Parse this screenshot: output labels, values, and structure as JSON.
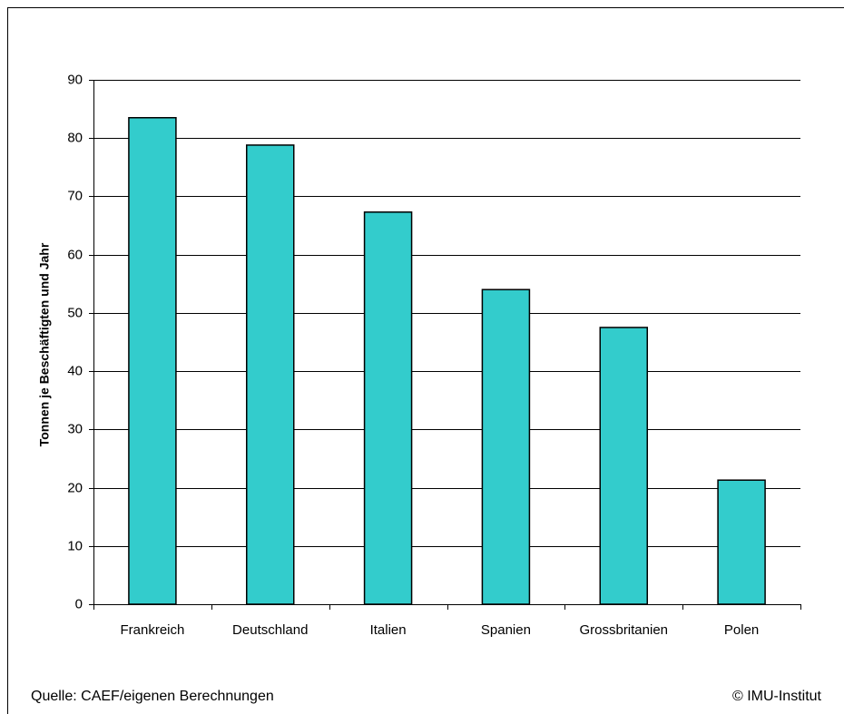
{
  "chart_data": {
    "type": "bar",
    "y_label": "Tonnen je Beschäftigten und Jahr",
    "categories": [
      "Frankreich",
      "Deutschland",
      "Italien",
      "Spanien",
      "Grossbritanien",
      "Polen"
    ],
    "values": [
      83.5,
      78.8,
      67.3,
      54.0,
      47.5,
      21.3
    ],
    "color": "#33cccc",
    "ylim": [
      0,
      90
    ],
    "yticks": [
      0,
      10,
      20,
      30,
      40,
      50,
      60,
      70,
      80,
      90
    ],
    "grid": true,
    "source": "Quelle: CAEF/eigenen Berechnungen",
    "credit": "© IMU-Institut"
  }
}
